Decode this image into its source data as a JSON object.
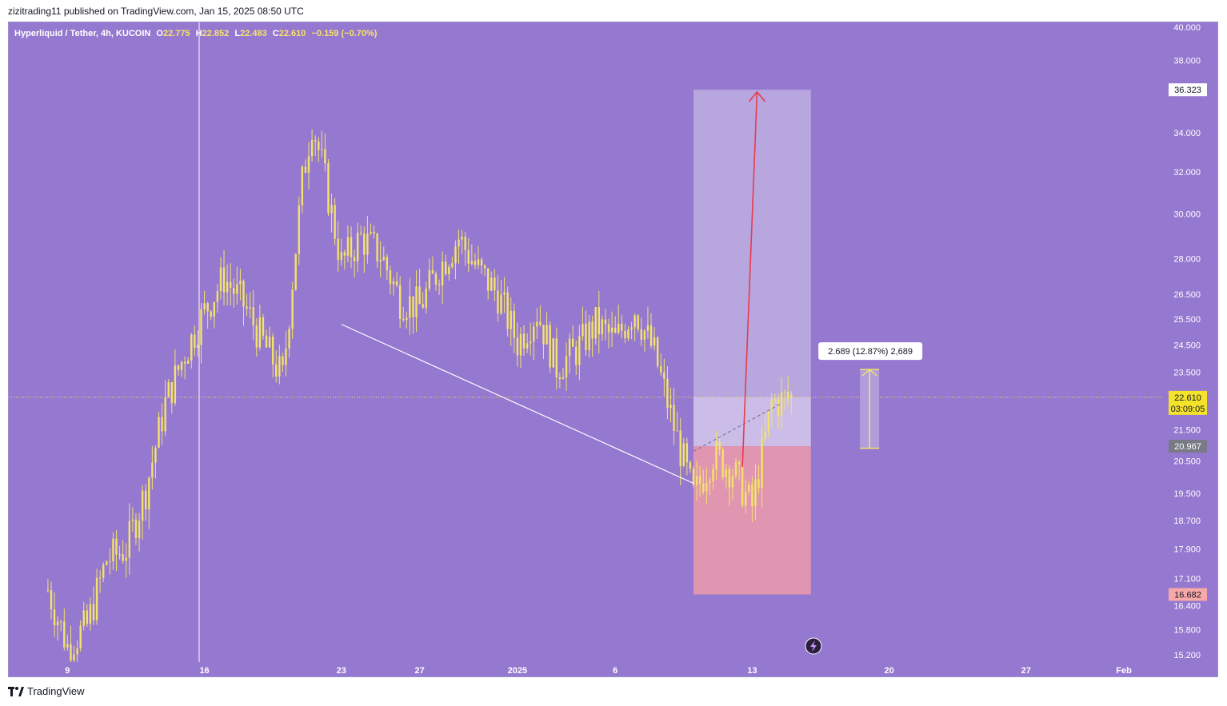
{
  "header": {
    "published_line": "zizitrading11 published on TradingView.com, Jan 15, 2025 08:50 UTC"
  },
  "legend": {
    "symbol": "Hyperliquid / Tether, 4h, KUCOIN",
    "open_label": "O",
    "open": "22.775",
    "high_label": "H",
    "high": "22.852",
    "low_label": "L",
    "low": "22.483",
    "close_label": "C",
    "close": "22.610",
    "change": "−0.159 (−0.70%)"
  },
  "footer": {
    "brand": "TradingView",
    "logo_icon": "tradingview-logo-icon"
  },
  "colors": {
    "background": "#9578cf",
    "candle": "#f4e36a",
    "wick": "#f4e36a",
    "target_zone": "#b8a6de",
    "stop_zone": "#e096b0",
    "entry_zone": "#cbbde8",
    "arrow": "#e83a4c",
    "trendline": "#ffffff",
    "measure": "#f4e36a"
  },
  "chart_data": {
    "type": "candlestick",
    "scale": "log",
    "ylim": [
      15.2,
      40.0
    ],
    "y_ticks": [
      "40.000",
      "38.000",
      "34.000",
      "32.000",
      "30.000",
      "28.000",
      "26.500",
      "25.500",
      "24.500",
      "23.500",
      "21.500",
      "20.500",
      "19.500",
      "18.700",
      "17.900",
      "17.100",
      "16.400",
      "15.800",
      "15.200"
    ],
    "y_tick_values": [
      40.0,
      38.0,
      34.0,
      32.0,
      30.0,
      28.0,
      26.5,
      25.5,
      24.5,
      23.5,
      21.5,
      20.5,
      19.5,
      18.7,
      17.9,
      17.1,
      16.4,
      15.8,
      15.2
    ],
    "x_range": [
      "2024-12-06",
      "2025-02-03"
    ],
    "x_ticks": [
      {
        "label": "9",
        "date": "2024-12-09"
      },
      {
        "label": "16",
        "date": "2024-12-16"
      },
      {
        "label": "23",
        "date": "2024-12-23"
      },
      {
        "label": "27",
        "date": "2024-12-27"
      },
      {
        "label": "2025",
        "date": "2025-01-01"
      },
      {
        "label": "6",
        "date": "2025-01-06"
      },
      {
        "label": "13",
        "date": "2025-01-13"
      },
      {
        "label": "20",
        "date": "2025-01-20"
      },
      {
        "label": "27",
        "date": "2025-01-27"
      },
      {
        "label": "Feb",
        "date": "2025-02-01"
      }
    ],
    "price_path": [
      {
        "date": "2024-12-08",
        "price": 16.8
      },
      {
        "date": "2024-12-09",
        "price": 15.4
      },
      {
        "date": "2024-12-10",
        "price": 15.9
      },
      {
        "date": "2024-12-11",
        "price": 17.6
      },
      {
        "date": "2024-12-12",
        "price": 17.9
      },
      {
        "date": "2024-12-13",
        "price": 19.6
      },
      {
        "date": "2024-12-14",
        "price": 22.4
      },
      {
        "date": "2024-12-15",
        "price": 24.2
      },
      {
        "date": "2024-12-16",
        "price": 25.8
      },
      {
        "date": "2024-12-17",
        "price": 27.2
      },
      {
        "date": "2024-12-18",
        "price": 26.1
      },
      {
        "date": "2024-12-19",
        "price": 24.6
      },
      {
        "date": "2024-12-20",
        "price": 23.3
      },
      {
        "date": "2024-12-21",
        "price": 31.5
      },
      {
        "date": "2024-12-21T12:00",
        "price": 34.6
      },
      {
        "date": "2024-12-22",
        "price": 32.4
      },
      {
        "date": "2024-12-23",
        "price": 27.8
      },
      {
        "date": "2024-12-24",
        "price": 28.9
      },
      {
        "date": "2024-12-25",
        "price": 28.2
      },
      {
        "date": "2024-12-26",
        "price": 26.3
      },
      {
        "date": "2024-12-27",
        "price": 26.0
      },
      {
        "date": "2024-12-28",
        "price": 27.6
      },
      {
        "date": "2024-12-29",
        "price": 28.9
      },
      {
        "date": "2024-12-30",
        "price": 27.5
      },
      {
        "date": "2024-12-31",
        "price": 26.5
      },
      {
        "date": "2025-01-01",
        "price": 24.6
      },
      {
        "date": "2025-01-02",
        "price": 25.8
      },
      {
        "date": "2025-01-03",
        "price": 23.7
      },
      {
        "date": "2025-01-04",
        "price": 24.3
      },
      {
        "date": "2025-01-05",
        "price": 25.3
      },
      {
        "date": "2025-01-06",
        "price": 24.7
      },
      {
        "date": "2025-01-07",
        "price": 25.9
      },
      {
        "date": "2025-01-08",
        "price": 24.2
      },
      {
        "date": "2025-01-09",
        "price": 21.6
      },
      {
        "date": "2025-01-10",
        "price": 19.4
      },
      {
        "date": "2025-01-11",
        "price": 20.7
      },
      {
        "date": "2025-01-12",
        "price": 20.2
      },
      {
        "date": "2025-01-13",
        "price": 19.1
      },
      {
        "date": "2025-01-14",
        "price": 22.4
      },
      {
        "date": "2025-01-15",
        "price": 22.61
      }
    ],
    "last_price": {
      "value": "22.610",
      "countdown": "03:09:05"
    },
    "position": {
      "target": "36.323",
      "target_value": 36.323,
      "entry": "22.610",
      "entry_value": 22.61,
      "stop_level": "20.967",
      "stop_level_value": 20.967,
      "stop": "16.682",
      "stop_value": 16.682,
      "start_date": "2025-01-10",
      "end_date": "2025-01-16"
    },
    "projection_arrow": {
      "from_date": "2025-01-12T12:00",
      "from_price": 20.3,
      "to_date": "2025-01-13T06:00",
      "to_price": 36.2
    },
    "trendline": {
      "from_date": "2024-12-23",
      "from_price": 25.3,
      "to_date": "2025-01-10",
      "to_price": 19.8
    },
    "dashed_line": {
      "from_date": "2025-01-10",
      "from_price": 20.8,
      "to_date": "2025-01-14T12:00",
      "to_price": 22.4
    },
    "measure": {
      "label": "2.689 (12.87%) 2,689",
      "date": "2025-01-19",
      "from_price": 20.9,
      "to_price": 23.6
    }
  }
}
